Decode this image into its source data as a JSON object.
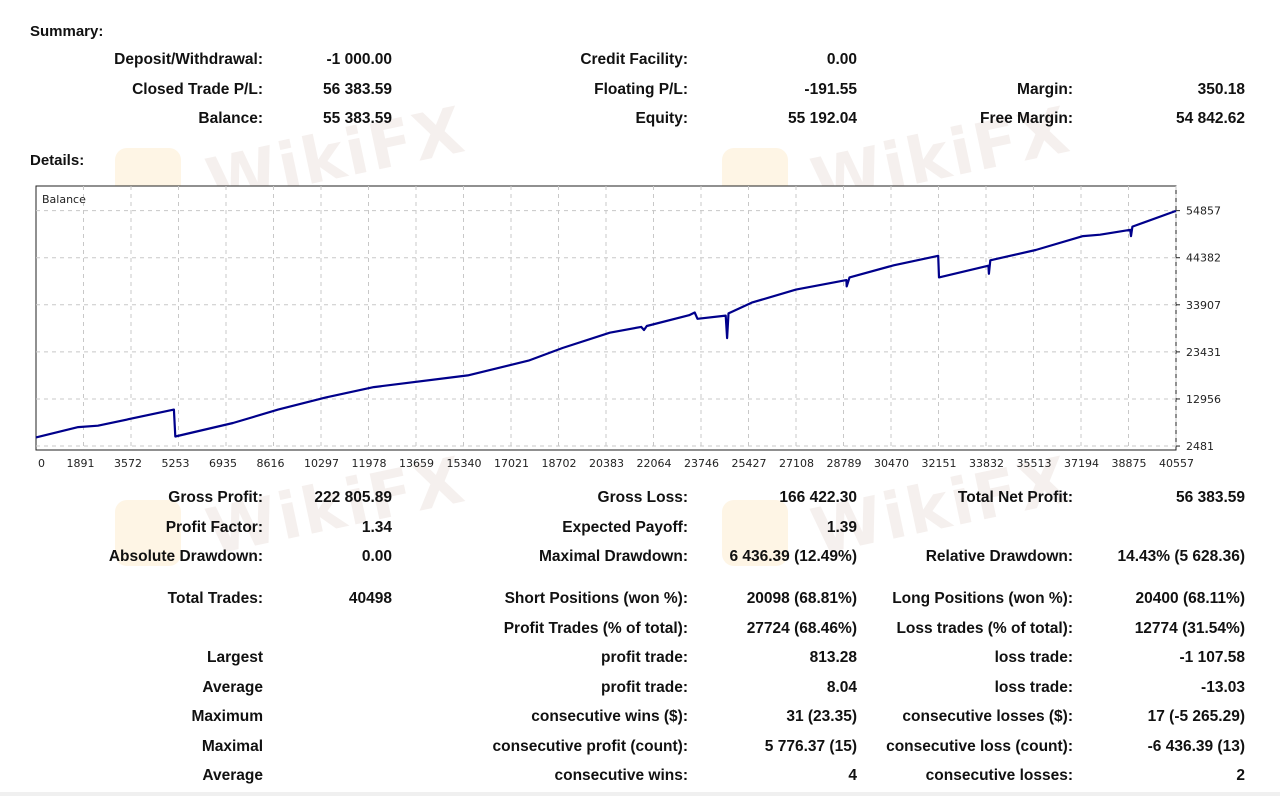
{
  "watermark": "WikiFX",
  "summary": {
    "title": "Summary:",
    "deposit_label": "Deposit/Withdrawal:",
    "deposit_value": "-1 000.00",
    "credit_label": "Credit Facility:",
    "credit_value": "0.00",
    "closed_label": "Closed Trade P/L:",
    "closed_value": "56 383.59",
    "floating_label": "Floating P/L:",
    "floating_value": "-191.55",
    "margin_label": "Margin:",
    "margin_value": "350.18",
    "balance_label": "Balance:",
    "balance_value": "55 383.59",
    "equity_label": "Equity:",
    "equity_value": "55 192.04",
    "free_margin_label": "Free Margin:",
    "free_margin_value": "54 842.62"
  },
  "details": {
    "title": "Details:",
    "rows": [
      [
        "Gross Profit:",
        "222 805.89",
        "Gross Loss:",
        "166 422.30",
        "Total Net Profit:",
        "56 383.59"
      ],
      [
        "Profit Factor:",
        "1.34",
        "Expected Payoff:",
        "1.39",
        "",
        ""
      ],
      [
        "Absolute Drawdown:",
        "0.00",
        "Maximal Drawdown:",
        "6 436.39 (12.49%)",
        "Relative Drawdown:",
        "14.43% (5 628.36)"
      ],
      [
        "Total Trades:",
        "40498",
        "Short Positions (won %):",
        "20098 (68.81%)",
        "Long Positions (won %):",
        "20400 (68.11%)"
      ],
      [
        "",
        "",
        "Profit Trades (% of total):",
        "27724 (68.46%)",
        "Loss trades (% of total):",
        "12774 (31.54%)"
      ],
      [
        "Largest",
        "",
        "profit trade:",
        "813.28",
        "loss trade:",
        "-1 107.58"
      ],
      [
        "Average",
        "",
        "profit trade:",
        "8.04",
        "loss trade:",
        "-13.03"
      ],
      [
        "Maximum",
        "",
        "consecutive wins ($):",
        "31 (23.35)",
        "consecutive losses ($):",
        "17 (-5 265.29)"
      ],
      [
        "Maximal",
        "",
        "consecutive profit (count):",
        "5 776.37 (15)",
        "consecutive loss (count):",
        "-6 436.39 (13)"
      ],
      [
        "Average",
        "",
        "consecutive wins:",
        "4",
        "consecutive losses:",
        "2"
      ]
    ]
  },
  "chart_data": {
    "type": "line",
    "title": "Balance",
    "xlabel": "",
    "ylabel": "",
    "xlim": [
      0,
      40498
    ],
    "ylim": [
      1600,
      60340
    ],
    "grid": true,
    "line_color": "#00008b",
    "x_ticks": [
      0,
      1891,
      3572,
      5253,
      6935,
      8616,
      10297,
      11978,
      13659,
      15340,
      17021,
      18702,
      20383,
      22064,
      23746,
      25427,
      27108,
      28789,
      30470,
      32151,
      33832,
      35513,
      37194,
      38875,
      40557
    ],
    "y_ticks": [
      54857,
      44382,
      33907,
      23431,
      12956,
      2481
    ],
    "series": [
      {
        "name": "Balance",
        "points": [
          [
            0,
            4400
          ],
          [
            1500,
            6700
          ],
          [
            2200,
            7000
          ],
          [
            4900,
            10600
          ],
          [
            4950,
            4600
          ],
          [
            7000,
            7600
          ],
          [
            8600,
            10600
          ],
          [
            10297,
            13300
          ],
          [
            12000,
            15600
          ],
          [
            15340,
            18200
          ],
          [
            17500,
            21500
          ],
          [
            18702,
            24300
          ],
          [
            20383,
            27700
          ],
          [
            21500,
            29000
          ],
          [
            21600,
            28300
          ],
          [
            21700,
            29200
          ],
          [
            23200,
            31600
          ],
          [
            23400,
            32200
          ],
          [
            23500,
            30800
          ],
          [
            24500,
            31500
          ],
          [
            24550,
            26500
          ],
          [
            24600,
            32000
          ],
          [
            25427,
            34400
          ],
          [
            27000,
            37300
          ],
          [
            28789,
            39400
          ],
          [
            28800,
            38000
          ],
          [
            28900,
            40000
          ],
          [
            30470,
            42700
          ],
          [
            32050,
            44800
          ],
          [
            32080,
            40000
          ],
          [
            33832,
            42600
          ],
          [
            33850,
            40800
          ],
          [
            33900,
            43800
          ],
          [
            35513,
            46100
          ],
          [
            37194,
            49200
          ],
          [
            37800,
            49500
          ],
          [
            38875,
            50600
          ],
          [
            38900,
            49200
          ],
          [
            38950,
            51300
          ],
          [
            40498,
            54800
          ]
        ]
      }
    ]
  }
}
